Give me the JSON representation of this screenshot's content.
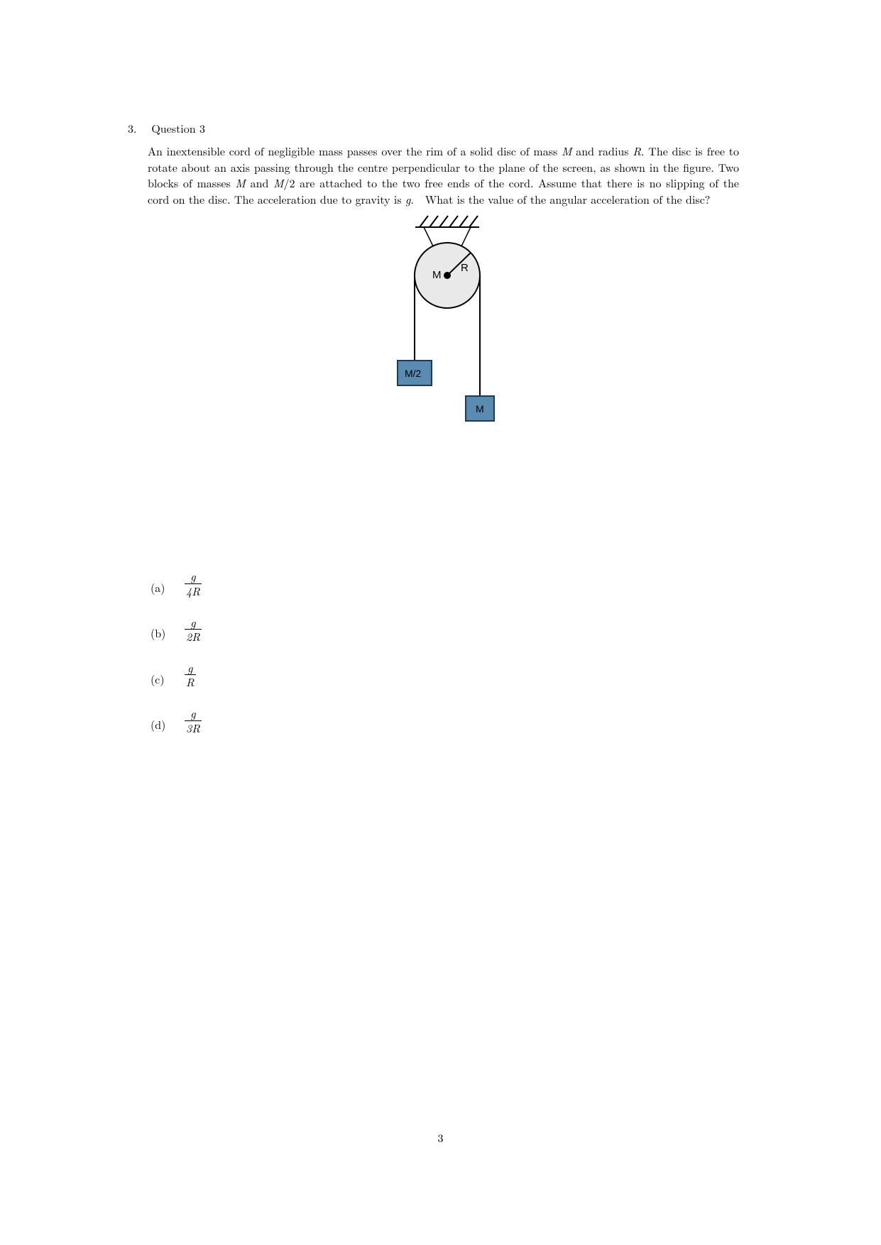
{
  "question": {
    "number": "3.",
    "title": "Question 3",
    "body_html": "An inextensible cord of negligible mass passes over the rim of a solid disc of mass <span class='italic'>M</span> and radius <span class='italic'>R</span>. The disc is free to rotate about an axis passing through the centre perpendicular to the plane of the screen, as shown in the figure. Two blocks of masses <span class='italic'>M</span> and <span class='italic'>M</span>/2 are attached to the two free ends of the cord. Assume that there is no slipping of the cord on the disc. The acceleration due to gravity is <span class='italic'>g</span>.&nbsp;&nbsp;What is the value of the angular acceleration of the disc?"
  },
  "diagram": {
    "disc_fill": "#e9e9e9",
    "disc_stroke": "#000000",
    "block_fill": "#5a8bb0",
    "block_stroke": "#1a3a5a",
    "text_color": "#000000",
    "label_M": "M",
    "label_R": "R",
    "label_M2": "M/2",
    "label_Mblock": "M"
  },
  "options": [
    {
      "label": "(a)",
      "num": "g",
      "den_html": "4<span style='font-style:italic'>R</span>"
    },
    {
      "label": "(b)",
      "num": "g",
      "den_html": "2<span style='font-style:italic'>R</span>"
    },
    {
      "label": "(c)",
      "num": "g",
      "den_html": "<span style='font-style:italic'>R</span>"
    },
    {
      "label": "(d)",
      "num": "g",
      "den_html": "3<span style='font-style:italic'>R</span>"
    }
  ],
  "page_number": "3"
}
